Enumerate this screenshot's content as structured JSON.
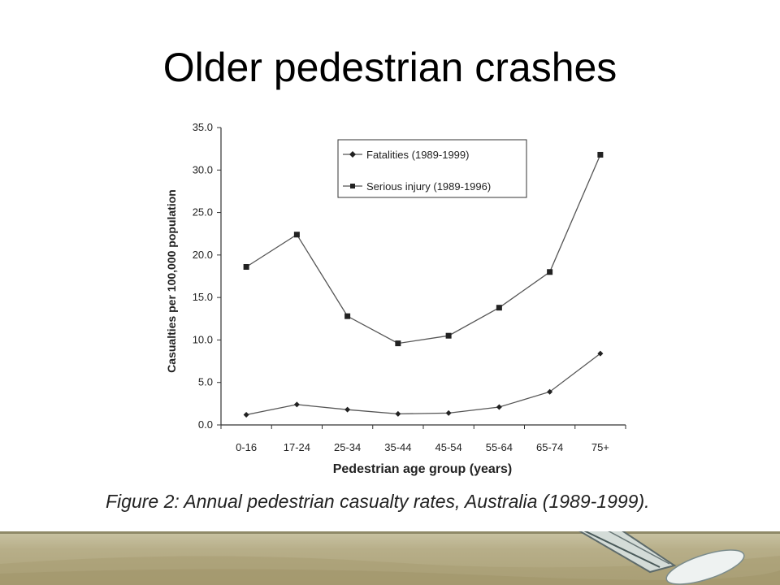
{
  "slide": {
    "title": "Older pedestrian crashes",
    "caption": "Figure 2: Annual pedestrian casualty rates, Australia (1989-1999)."
  },
  "chart_data": {
    "type": "line",
    "title": "",
    "xlabel": "Pedestrian age group (years)",
    "ylabel": "Casualties per 100,000 population",
    "categories": [
      "0-16",
      "17-24",
      "25-34",
      "35-44",
      "45-54",
      "55-64",
      "65-74",
      "75+"
    ],
    "ylim": [
      0,
      35
    ],
    "yticks": [
      "0.0",
      "5.0",
      "10.0",
      "15.0",
      "20.0",
      "25.0",
      "30.0",
      "35.0"
    ],
    "grid": false,
    "legend_position": "top-right",
    "series": [
      {
        "name": "Fatalities (1989-1999)",
        "marker": "diamond",
        "values": [
          1.2,
          2.4,
          1.8,
          1.3,
          1.4,
          2.1,
          3.9,
          8.4
        ]
      },
      {
        "name": "Serious injury (1989-1996)",
        "marker": "square",
        "values": [
          18.6,
          22.4,
          12.8,
          9.6,
          10.5,
          13.8,
          18.0,
          31.8
        ]
      }
    ],
    "line_color": "#555555"
  },
  "footer": {
    "band_color": "#b7ae88"
  }
}
